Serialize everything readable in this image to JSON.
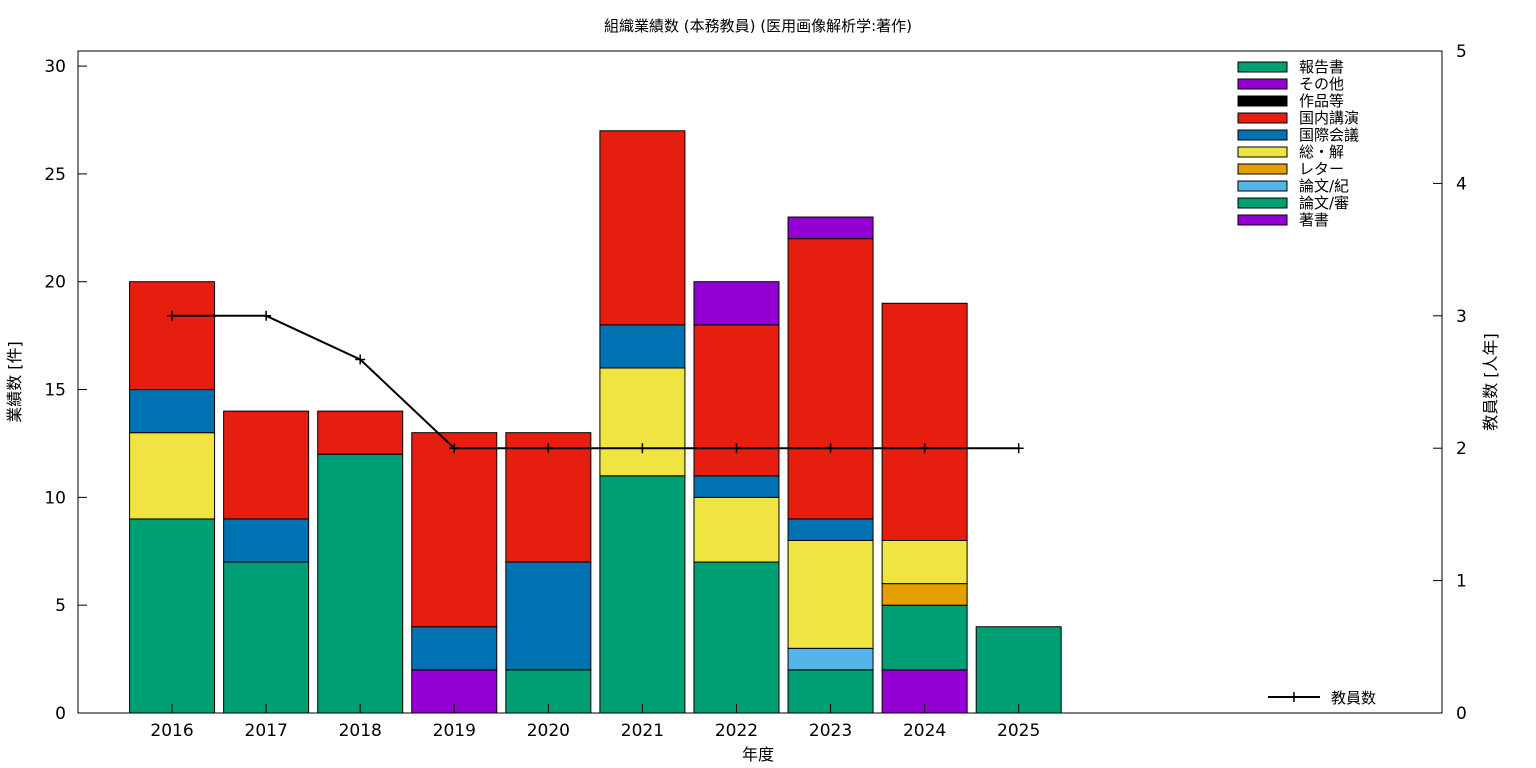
{
  "chart_data": {
    "type": "bar",
    "stacked": true,
    "title": "組織業績数 (本務教員) (医用画像解析学:著作)",
    "xlabel": "年度",
    "ylabel": "業績数 [件]",
    "y2label": "教員数 [人年]",
    "categories": [
      "2016",
      "2017",
      "2018",
      "2019",
      "2020",
      "2021",
      "2022",
      "2023",
      "2024",
      "2025"
    ],
    "ylim": [
      0,
      30.7
    ],
    "yticks": [
      0,
      5,
      10,
      15,
      20,
      25,
      30
    ],
    "y2lim": [
      0,
      5
    ],
    "y2ticks": [
      0,
      1,
      2,
      3,
      4,
      5
    ],
    "grid": false,
    "legend_position": "top-right",
    "series": [
      {
        "name": "著書",
        "color": "#9400d3",
        "values": [
          0,
          0,
          0,
          2,
          0,
          0,
          0,
          0,
          2,
          0
        ]
      },
      {
        "name": "論文/審",
        "color": "#009e73",
        "values": [
          9,
          7,
          12,
          0,
          2,
          11,
          7,
          2,
          3,
          4
        ]
      },
      {
        "name": "論文/紀",
        "color": "#56b4e9",
        "values": [
          0,
          0,
          0,
          0,
          0,
          0,
          0,
          1,
          0,
          0
        ]
      },
      {
        "name": "レター",
        "color": "#e69f00",
        "values": [
          0,
          0,
          0,
          0,
          0,
          0,
          0,
          0,
          1,
          0
        ]
      },
      {
        "name": "総・解",
        "color": "#f0e442",
        "values": [
          4,
          0,
          0,
          0,
          0,
          5,
          3,
          5,
          2,
          0
        ]
      },
      {
        "name": "国際会議",
        "color": "#0072b2",
        "values": [
          2,
          2,
          0,
          2,
          5,
          2,
          1,
          1,
          0,
          0
        ]
      },
      {
        "name": "国内講演",
        "color": "#e51e10",
        "values": [
          5,
          5,
          2,
          9,
          6,
          9,
          7,
          13,
          11,
          0
        ]
      },
      {
        "name": "作品等",
        "color": "#000000",
        "values": [
          0,
          0,
          0,
          0,
          0,
          0,
          0,
          0,
          0,
          0
        ]
      },
      {
        "name": "その他",
        "color": "#9400d3",
        "values": [
          0,
          0,
          0,
          0,
          0,
          0,
          2,
          1,
          0,
          0
        ]
      },
      {
        "name": "報告書",
        "color": "#009e73",
        "values": [
          0,
          0,
          0,
          0,
          0,
          0,
          0,
          0,
          0,
          0
        ]
      }
    ],
    "line_series": {
      "name": "教員数",
      "axis": "y2",
      "color": "#000000",
      "values": [
        3,
        3,
        2.67,
        2,
        2,
        2,
        2,
        2,
        2,
        2
      ]
    }
  }
}
